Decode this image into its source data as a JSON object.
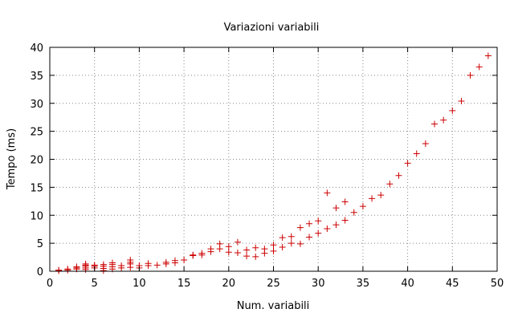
{
  "chart_data": {
    "type": "scatter",
    "title": "Variazioni variabili",
    "xlabel": "Num. variabili",
    "ylabel": "Tempo (ms)",
    "xlim": [
      0,
      50
    ],
    "ylim": [
      0,
      40
    ],
    "xticks": [
      0,
      5,
      10,
      15,
      20,
      25,
      30,
      35,
      40,
      45,
      50
    ],
    "yticks": [
      0,
      5,
      10,
      15,
      20,
      25,
      30,
      35,
      40
    ],
    "grid": true,
    "marker": "+",
    "color": "#cc0000",
    "series": [
      {
        "points": [
          [
            1,
            0.1
          ],
          [
            1,
            0.2
          ],
          [
            2,
            0.2
          ],
          [
            2,
            0.4
          ],
          [
            3,
            0.4
          ],
          [
            3,
            0.6
          ],
          [
            3,
            0.8
          ],
          [
            4,
            0.3
          ],
          [
            4,
            0.6
          ],
          [
            4,
            0.9
          ],
          [
            4,
            1.1
          ],
          [
            4,
            1.3
          ],
          [
            5,
            0.6
          ],
          [
            5,
            0.9
          ],
          [
            5,
            1.1
          ],
          [
            6,
            0.1
          ],
          [
            6,
            0.5
          ],
          [
            6,
            0.9
          ],
          [
            6,
            1.2
          ],
          [
            7,
            0.4
          ],
          [
            7,
            0.8
          ],
          [
            7,
            1.2
          ],
          [
            7,
            1.5
          ],
          [
            8,
            0.6
          ],
          [
            8,
            1.0
          ],
          [
            9,
            0.7
          ],
          [
            9,
            1.3
          ],
          [
            9,
            1.6
          ],
          [
            9,
            2.0
          ],
          [
            10,
            0.6
          ],
          [
            10,
            1.0
          ],
          [
            11,
            1.0
          ],
          [
            11,
            1.4
          ],
          [
            12,
            1.1
          ],
          [
            13,
            1.3
          ],
          [
            13,
            1.6
          ],
          [
            14,
            1.5
          ],
          [
            14,
            1.9
          ],
          [
            15,
            2.0
          ],
          [
            16,
            2.8
          ],
          [
            16,
            2.9
          ],
          [
            17,
            2.9
          ],
          [
            17,
            3.2
          ],
          [
            18,
            3.5
          ],
          [
            18,
            4.0
          ],
          [
            19,
            4.0
          ],
          [
            19,
            4.9
          ],
          [
            20,
            3.4
          ],
          [
            20,
            4.4
          ],
          [
            21,
            3.3
          ],
          [
            21,
            5.2
          ],
          [
            22,
            2.7
          ],
          [
            22,
            3.8
          ],
          [
            23,
            2.6
          ],
          [
            23,
            4.2
          ],
          [
            24,
            3.2
          ],
          [
            24,
            4.0
          ],
          [
            25,
            3.6
          ],
          [
            25,
            4.7
          ],
          [
            26,
            4.3
          ],
          [
            26,
            6.0
          ],
          [
            27,
            5.0
          ],
          [
            27,
            6.2
          ],
          [
            28,
            4.9
          ],
          [
            28,
            7.8
          ],
          [
            29,
            6.1
          ],
          [
            29,
            8.5
          ],
          [
            30,
            6.8
          ],
          [
            30,
            9.0
          ],
          [
            31,
            7.6
          ],
          [
            31,
            14.0
          ],
          [
            32,
            8.3
          ],
          [
            32,
            11.3
          ],
          [
            33,
            9.1
          ],
          [
            33,
            12.4
          ],
          [
            34,
            10.5
          ],
          [
            35,
            11.6
          ],
          [
            36,
            13.0
          ],
          [
            37,
            13.6
          ],
          [
            38,
            15.6
          ],
          [
            39,
            17.1
          ],
          [
            40,
            19.3
          ],
          [
            41,
            21.0
          ],
          [
            42,
            22.8
          ],
          [
            43,
            26.3
          ],
          [
            44,
            27.0
          ],
          [
            45,
            28.7
          ],
          [
            46,
            30.4
          ],
          [
            47,
            35.0
          ],
          [
            48,
            36.5
          ],
          [
            49,
            38.5
          ]
        ]
      }
    ]
  }
}
